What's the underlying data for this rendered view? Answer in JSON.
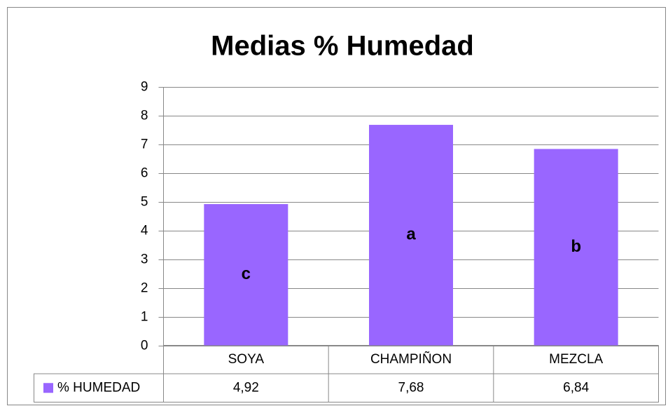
{
  "chart_data": {
    "type": "bar",
    "title": "Medias % Humedad",
    "categories": [
      "SOYA",
      "CHAMPIÑON",
      "MEZCLA"
    ],
    "series": [
      {
        "name": "% HUMEDAD",
        "color": "#9966ff",
        "values": [
          4.92,
          7.68,
          6.84
        ],
        "value_labels": [
          "4,92",
          "7,68",
          "6,84"
        ]
      }
    ],
    "annotations": [
      "c",
      "a",
      "b"
    ],
    "ylim": [
      0,
      9
    ],
    "yticks": [
      0,
      1,
      2,
      3,
      4,
      5,
      6,
      7,
      8,
      9
    ],
    "grid": true
  }
}
